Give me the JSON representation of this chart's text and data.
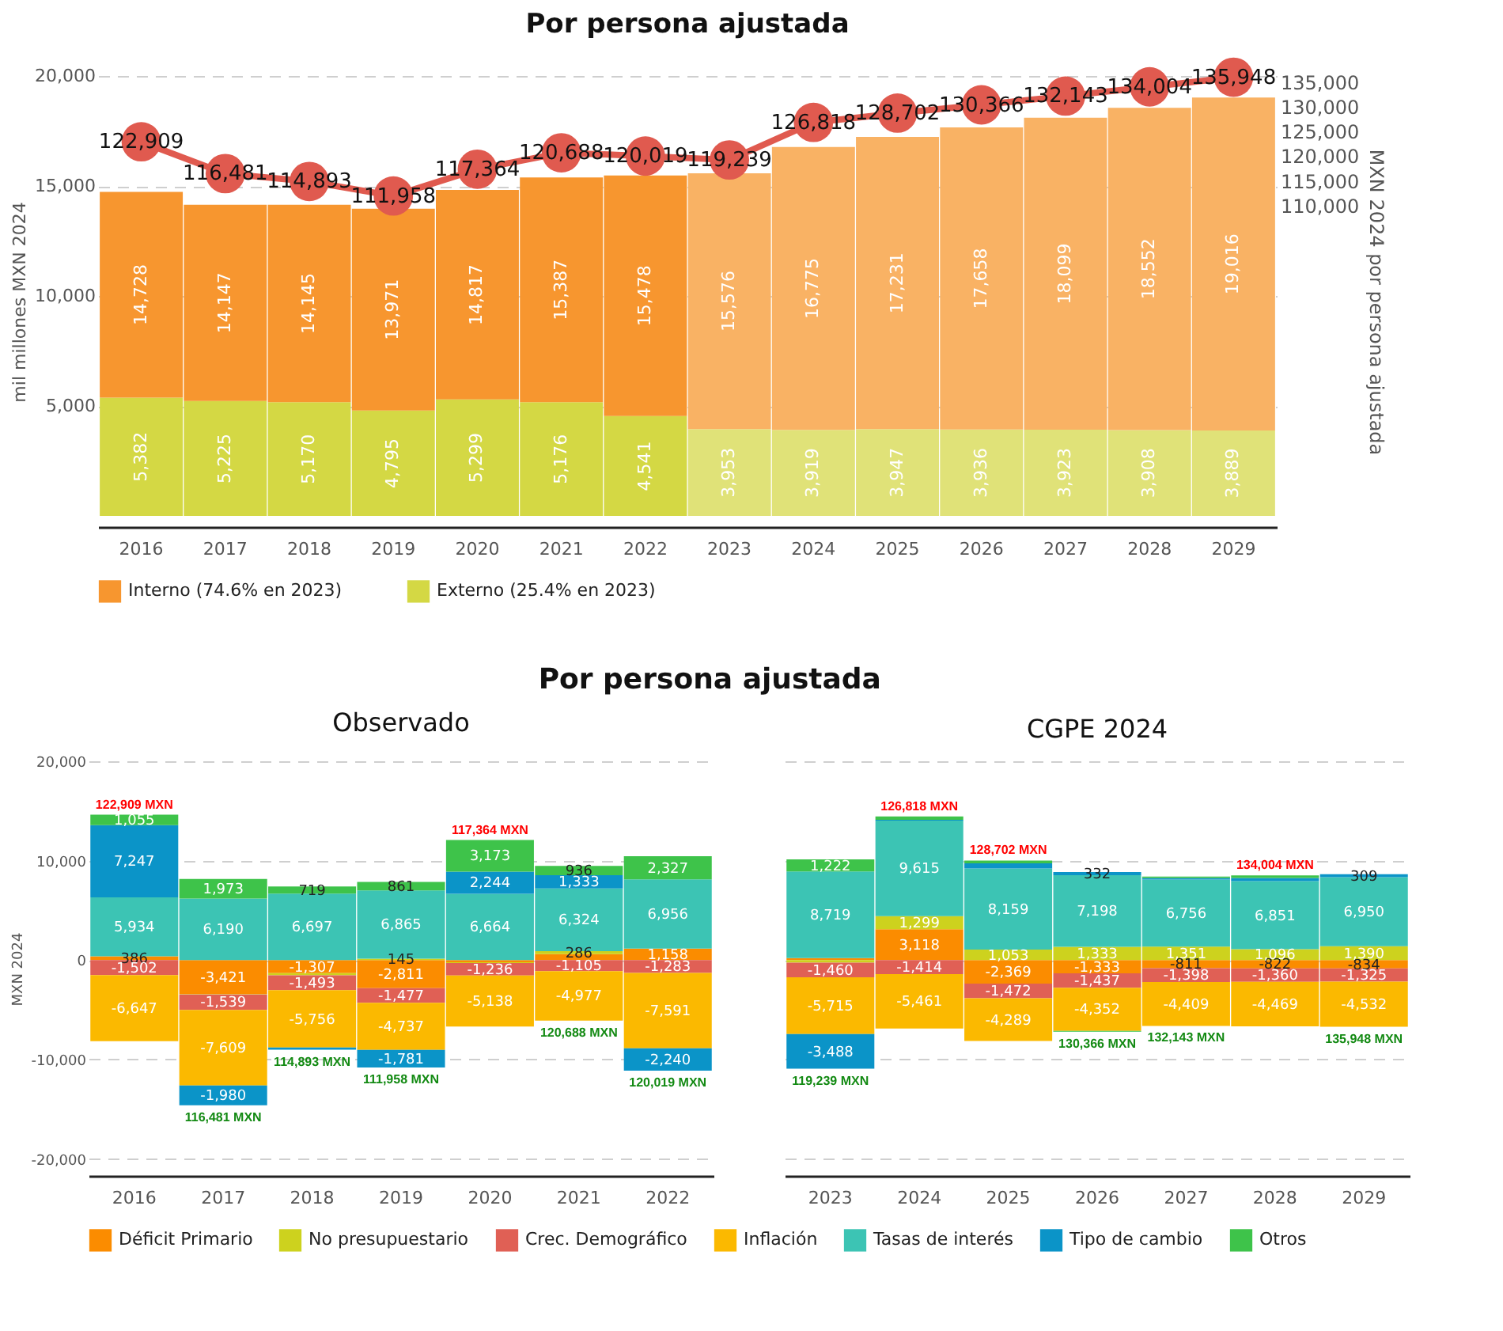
{
  "chart_data": [
    {
      "type": "bar",
      "title": "Por persona ajustada",
      "ylabel": "mil millones MXN 2024",
      "y2label": "MXN 2024 por persona ajustada",
      "categories": [
        "2016",
        "2017",
        "2018",
        "2019",
        "2020",
        "2021",
        "2022",
        "2023",
        "2024",
        "2025",
        "2026",
        "2027",
        "2028",
        "2029"
      ],
      "stacked": true,
      "totals": [
        "14,728",
        "14,147",
        "14,145",
        "13,971",
        "14,817",
        "15,387",
        "15,478",
        "15,576",
        "16,775",
        "17,231",
        "17,658",
        "18,099",
        "18,552",
        "19,016"
      ],
      "ylim": [
        -500,
        20000
      ],
      "yticks": [
        {
          "value": 5000,
          "label": "5,000"
        },
        {
          "value": 10000,
          "label": "10,000"
        },
        {
          "value": 15000,
          "label": "15,000"
        },
        {
          "value": 20000,
          "label": "20,000"
        }
      ],
      "y2lim": [
        45100,
        136200
      ],
      "y2ticks": [
        {
          "value": 110000,
          "label": "110,000"
        },
        {
          "value": 115000,
          "label": "115,000"
        },
        {
          "value": 120000,
          "label": "120,000"
        },
        {
          "value": 125000,
          "label": "125,000"
        },
        {
          "value": 130000,
          "label": "130,000"
        },
        {
          "value": 135000,
          "label": "135,000"
        }
      ],
      "grid": "y",
      "legend": "bottom",
      "marker": "circle",
      "series": [
        {
          "name": "Externo (25.4% en 2023)",
          "color": "#d4d844",
          "colors": [
            "#d4d844",
            "#d4d844",
            "#d4d844",
            "#d4d844",
            "#d4d844",
            "#d4d844",
            "#d4d844",
            "#e0e278",
            "#e0e278",
            "#e0e278",
            "#e0e278",
            "#e0e278",
            "#e0e278",
            "#e0e278"
          ],
          "values": [
            5382,
            5225,
            5170,
            4795,
            5299,
            5176,
            4541,
            3953,
            3919,
            3947,
            3936,
            3923,
            3908,
            3889
          ],
          "value_labels": [
            "5,382",
            "5,225",
            "5,170",
            "4,795",
            "5,299",
            "5,176",
            "4,541",
            "3,953",
            "3,919",
            "3,947",
            "3,936",
            "3,923",
            "3,908",
            "3,889"
          ]
        },
        {
          "name": "Interno (74.6% en 2023)",
          "color": "#f7962f",
          "colors": [
            "#f7962f",
            "#f7962f",
            "#f7962f",
            "#f7962f",
            "#f7962f",
            "#f7962f",
            "#f7962f",
            "#f9b264",
            "#f9b264",
            "#f9b264",
            "#f9b264",
            "#f9b264",
            "#f9b264",
            "#f9b264"
          ],
          "values": [
            9346,
            8922,
            8975,
            9176,
            9518,
            10211,
            10937,
            11623,
            12856,
            13284,
            13722,
            14176,
            14644,
            15127
          ]
        },
        {
          "type": "line",
          "axis": "y2",
          "color": "#e05a4f",
          "values": [
            122909,
            116481,
            114893,
            111958,
            117364,
            120688,
            120019,
            119239,
            126818,
            128702,
            130366,
            132143,
            134004,
            135948
          ],
          "value_labels": [
            "122,909",
            "116,481",
            "114,893",
            "111,958",
            "117,364",
            "120,688",
            "120,019",
            "119,239",
            "126,818",
            "128,702",
            "130,366",
            "132,143",
            "134,004",
            "135,948"
          ]
        }
      ]
    },
    {
      "type": "bar",
      "title": "Por persona ajustada",
      "subtitle": "Observado",
      "ylabel": "MXN 2024",
      "categories": [
        "2016",
        "2017",
        "2018",
        "2019",
        "2020",
        "2021",
        "2022"
      ],
      "stacked": true,
      "ylim": [
        -21700,
        20000
      ],
      "yticks": [
        {
          "value": -20000,
          "label": "-20,000"
        },
        {
          "value": -10000,
          "label": "-10,000"
        },
        {
          "value": 0,
          "label": "0"
        },
        {
          "value": 10000,
          "label": "10,000"
        },
        {
          "value": 20000,
          "label": "20,000"
        }
      ],
      "grid": "y",
      "legend": "bottom",
      "series": [
        {
          "name": "Déficit Primario",
          "color": "#fb8c00",
          "values": [
            386,
            -3421,
            -1307,
            -2811,
            -208,
            606,
            1158
          ],
          "value_labels": [
            "386",
            "-3,421",
            "-1,307",
            "-2,811",
            null,
            null,
            "1,158"
          ]
        },
        {
          "name": "No presupuestario",
          "color": "#cdd21e",
          "values": [
            null,
            -40,
            -226,
            145,
            -93,
            286,
            4
          ],
          "value_labels": [
            null,
            null,
            null,
            "145",
            null,
            "286",
            null
          ]
        },
        {
          "name": "Crec. Demográfico",
          "color": "#e06055",
          "values": [
            -1502,
            -1539,
            -1493,
            -1477,
            -1236,
            -1105,
            -1283
          ],
          "value_labels": [
            "-1,502",
            "-1,539",
            "-1,493",
            "-1,477",
            "-1,236",
            "-1,105",
            "-1,283"
          ]
        },
        {
          "name": "Inflación",
          "color": "#fbb900",
          "values": [
            -6647,
            -7609,
            -5756,
            -4737,
            -5138,
            -4977,
            -7591
          ],
          "value_labels": [
            "-6,647",
            "-7,609",
            "-5,756",
            "-4,737",
            "-5,138",
            "-4,977",
            "-7,591"
          ]
        },
        {
          "name": "Tasas de interés",
          "color": "#3cc4b4",
          "values": [
            5934,
            6190,
            6697,
            6865,
            6664,
            6324,
            6956
          ],
          "value_labels": [
            "5,934",
            "6,190",
            "6,697",
            "6,865",
            "6,664",
            "6,324",
            "6,956"
          ]
        },
        {
          "name": "Tipo de cambio",
          "color": "#0b94c8",
          "values": [
            7247,
            -1980,
            -233,
            -1781,
            2244,
            1333,
            -2240
          ],
          "value_labels": [
            "7,247",
            "-1,980",
            null,
            "-1,781",
            "2,244",
            "1,333",
            "-2,240"
          ]
        },
        {
          "name": "Otros",
          "color": "#3ec34a",
          "values": [
            1055,
            1973,
            719,
            861,
            3173,
            936,
            2327
          ],
          "value_labels": [
            "1,055",
            "1,973",
            "719",
            "861",
            "3,173",
            "936",
            "2,327"
          ]
        }
      ],
      "annotations": [
        {
          "text": "122,909 MXN",
          "x": "2016",
          "y": 14622
        },
        {
          "text": "116,481 MXN",
          "x": "2017",
          "y": -14589
        },
        {
          "text": "114,893 MXN",
          "x": "2018",
          "y": -9015
        },
        {
          "text": "111,958 MXN",
          "x": "2019",
          "y": -10806
        },
        {
          "text": "117,364 MXN",
          "x": "2020",
          "y": 12081
        },
        {
          "text": "120,688 MXN",
          "x": "2021",
          "y": -6082
        },
        {
          "text": "120,019 MXN",
          "x": "2022",
          "y": -11114
        }
      ]
    },
    {
      "type": "bar",
      "title": "CGPE 2024",
      "categories": [
        "2023",
        "2024",
        "2025",
        "2026",
        "2027",
        "2028",
        "2029"
      ],
      "stacked": true,
      "ylim": [
        -21700,
        20000
      ],
      "yticks": [
        -20000,
        -10000,
        0,
        10000,
        20000
      ],
      "grid": "y",
      "tick_labels": "x",
      "legend": "bottom",
      "series": [
        {
          "name": "Déficit Primario",
          "color": "#fb8c00",
          "values": [
            200,
            3118,
            -2369,
            -1333,
            -811,
            -822,
            -834
          ],
          "value_labels": [
            null,
            "3,118",
            "-2,369",
            "-1,333",
            "-811",
            "-822",
            "-834"
          ]
        },
        {
          "name": "No presupuestario",
          "color": "#cdd21e",
          "values": [
            -258,
            1299,
            1053,
            1333,
            1351,
            1096,
            1390
          ],
          "value_labels": [
            null,
            "1,299",
            "1,053",
            "1,333",
            "1,351",
            "1,096",
            "1,390"
          ]
        },
        {
          "name": "Crec. Demográfico",
          "color": "#e06055",
          "values": [
            -1460,
            -1414,
            -1472,
            -1437,
            -1398,
            -1360,
            -1325
          ],
          "value_labels": [
            "-1,460",
            "-1,414",
            "-1,472",
            "-1,437",
            "-1,398",
            "-1,360",
            "-1,325"
          ]
        },
        {
          "name": "Inflación",
          "color": "#fbb900",
          "values": [
            -5715,
            -5461,
            -4289,
            -4352,
            -4409,
            -4469,
            -4532
          ],
          "value_labels": [
            "-5,715",
            "-5,461",
            "-4,289",
            "-4,352",
            "-4,409",
            "-4,469",
            "-4,532"
          ]
        },
        {
          "name": "Tasas de interés",
          "color": "#3cc4b4",
          "values": [
            8719,
            9615,
            8159,
            7198,
            6756,
            6851,
            6950
          ],
          "value_labels": [
            "8,719",
            "9,615",
            "8,159",
            "7,198",
            "6,756",
            "6,851",
            "6,950"
          ]
        },
        {
          "name": "Tipo de cambio",
          "color": "#0b94c8",
          "values": [
            -3488,
            70,
            514,
            332,
            145,
            317,
            309
          ],
          "value_labels": [
            "-3,488",
            null,
            null,
            "332",
            null,
            null,
            "309"
          ]
        },
        {
          "name": "Otros",
          "color": "#3ec34a",
          "values": [
            1222,
            352,
            288,
            -76,
            143,
            248,
            null
          ],
          "value_labels": [
            "1,222",
            null,
            null,
            null,
            null,
            null,
            null
          ]
        }
      ],
      "annotations": [
        {
          "text": "119,239 MXN",
          "x": "2023",
          "y": -10921
        },
        {
          "text": "126,818 MXN",
          "x": "2024",
          "y": 14454
        },
        {
          "text": "128,702 MXN",
          "x": "2025",
          "y": 10014
        },
        {
          "text": "130,366 MXN",
          "x": "2026",
          "y": -7198
        },
        {
          "text": "132,143 MXN",
          "x": "2027",
          "y": -6618
        },
        {
          "text": "134,004 MXN",
          "x": "2028",
          "y": 8512
        },
        {
          "text": "135,948 MXN",
          "x": "2029",
          "y": -6705
        }
      ]
    }
  ]
}
